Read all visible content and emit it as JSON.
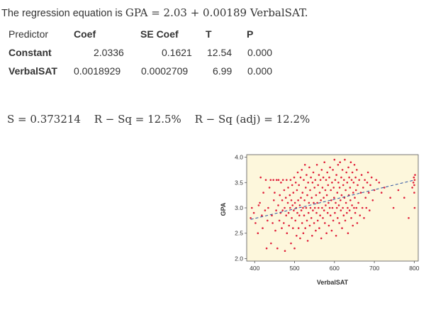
{
  "equation": {
    "label": "The regression equation is",
    "formula": "GPA = 2.03 + 0.00189 VerbalSAT."
  },
  "table": {
    "headers": [
      "Predictor",
      "Coef",
      "SE Coef",
      "T",
      "P"
    ],
    "rows": [
      [
        "Constant",
        "2.0336",
        "0.1621",
        "12.54",
        "0.000"
      ],
      [
        "VerbalSAT",
        "0.0018929",
        "0.0002709",
        "6.99",
        "0.000"
      ]
    ]
  },
  "stats": {
    "s": "S = 0.373214",
    "rsq": "R − Sq = 12.5%",
    "rsq_adj": "R − Sq (adj) = 12.2%"
  },
  "colors": {
    "plot_bg": "#fdf7dc",
    "points": "#e0203a",
    "fit_line": "#2a4f9e"
  },
  "chart_data": {
    "type": "scatter",
    "title": "",
    "xlabel": "VerbalSAT",
    "ylabel": "GPA",
    "xlim": [
      380,
      810
    ],
    "ylim": [
      1.95,
      4.05
    ],
    "xticks": [
      "400",
      "500",
      "600",
      "700",
      "800"
    ],
    "yticks": [
      "2.0",
      "2.5",
      "3.0",
      "3.5",
      "4.0"
    ],
    "fit_line": {
      "intercept": 2.0336,
      "slope": 0.0018929,
      "x_from": 390,
      "x_to": 800,
      "style": "dashed"
    },
    "points": [
      [
        390,
        2.8
      ],
      [
        393,
        3.0
      ],
      [
        398,
        2.9
      ],
      [
        402,
        2.7
      ],
      [
        408,
        2.5
      ],
      [
        410,
        3.05
      ],
      [
        413,
        3.1
      ],
      [
        415,
        3.6
      ],
      [
        418,
        2.85
      ],
      [
        420,
        2.6
      ],
      [
        422,
        3.3
      ],
      [
        426,
        2.95
      ],
      [
        428,
        3.55
      ],
      [
        430,
        2.2
      ],
      [
        432,
        2.75
      ],
      [
        434,
        3.0
      ],
      [
        437,
        3.4
      ],
      [
        440,
        3.55
      ],
      [
        441,
        2.3
      ],
      [
        443,
        2.85
      ],
      [
        445,
        2.7
      ],
      [
        447,
        3.55
      ],
      [
        448,
        3.15
      ],
      [
        450,
        3.3
      ],
      [
        452,
        2.55
      ],
      [
        454,
        2.95
      ],
      [
        455,
        3.55
      ],
      [
        457,
        2.2
      ],
      [
        459,
        3.05
      ],
      [
        460,
        3.55
      ],
      [
        462,
        2.75
      ],
      [
        463,
        3.25
      ],
      [
        465,
        2.9
      ],
      [
        466,
        3.5
      ],
      [
        468,
        2.6
      ],
      [
        469,
        3.15
      ],
      [
        470,
        2.95
      ],
      [
        471,
        3.55
      ],
      [
        473,
        2.7
      ],
      [
        474,
        3.35
      ],
      [
        475,
        3.0
      ],
      [
        476,
        2.15
      ],
      [
        478,
        3.2
      ],
      [
        479,
        2.85
      ],
      [
        480,
        3.55
      ],
      [
        481,
        2.5
      ],
      [
        483,
        3.1
      ],
      [
        484,
        3.4
      ],
      [
        485,
        2.9
      ],
      [
        486,
        2.65
      ],
      [
        488,
        3.25
      ],
      [
        489,
        3.0
      ],
      [
        490,
        3.55
      ],
      [
        491,
        2.3
      ],
      [
        492,
        3.15
      ],
      [
        493,
        2.8
      ],
      [
        494,
        3.45
      ],
      [
        495,
        3.05
      ],
      [
        496,
        2.6
      ],
      [
        497,
        3.3
      ],
      [
        498,
        2.95
      ],
      [
        499,
        3.6
      ],
      [
        500,
        2.2
      ],
      [
        501,
        3.1
      ],
      [
        502,
        2.75
      ],
      [
        503,
        3.5
      ],
      [
        504,
        3.0
      ],
      [
        505,
        2.45
      ],
      [
        506,
        3.35
      ],
      [
        507,
        2.9
      ],
      [
        508,
        3.7
      ],
      [
        509,
        3.15
      ],
      [
        510,
        2.6
      ],
      [
        511,
        3.45
      ],
      [
        512,
        2.85
      ],
      [
        513,
        3.05
      ],
      [
        514,
        2.4
      ],
      [
        515,
        3.6
      ],
      [
        516,
        3.2
      ],
      [
        517,
        2.95
      ],
      [
        518,
        3.75
      ],
      [
        519,
        2.7
      ],
      [
        520,
        3.3
      ],
      [
        521,
        3.0
      ],
      [
        522,
        2.5
      ],
      [
        523,
        3.55
      ],
      [
        524,
        2.85
      ],
      [
        525,
        3.15
      ],
      [
        526,
        3.85
      ],
      [
        527,
        2.6
      ],
      [
        528,
        3.4
      ],
      [
        529,
        3.0
      ],
      [
        530,
        3.65
      ],
      [
        531,
        2.75
      ],
      [
        532,
        3.25
      ],
      [
        533,
        2.35
      ],
      [
        534,
        3.5
      ],
      [
        535,
        2.9
      ],
      [
        536,
        3.1
      ],
      [
        537,
        3.8
      ],
      [
        538,
        2.65
      ],
      [
        539,
        3.35
      ],
      [
        540,
        3.0
      ],
      [
        541,
        3.6
      ],
      [
        542,
        2.8
      ],
      [
        543,
        3.2
      ],
      [
        544,
        2.45
      ],
      [
        545,
        3.5
      ],
      [
        546,
        2.95
      ],
      [
        547,
        3.7
      ],
      [
        548,
        3.1
      ],
      [
        549,
        2.7
      ],
      [
        550,
        3.4
      ],
      [
        551,
        3.0
      ],
      [
        552,
        3.55
      ],
      [
        553,
        2.55
      ],
      [
        554,
        3.25
      ],
      [
        555,
        2.9
      ],
      [
        556,
        3.85
      ],
      [
        557,
        3.1
      ],
      [
        558,
        2.75
      ],
      [
        559,
        3.45
      ],
      [
        560,
        3.0
      ],
      [
        561,
        3.65
      ],
      [
        562,
        2.6
      ],
      [
        563,
        3.3
      ],
      [
        564,
        2.85
      ],
      [
        565,
        3.55
      ],
      [
        566,
        3.15
      ],
      [
        567,
        2.4
      ],
      [
        568,
        3.75
      ],
      [
        569,
        3.0
      ],
      [
        570,
        3.4
      ],
      [
        571,
        2.8
      ],
      [
        572,
        3.6
      ],
      [
        573,
        3.2
      ],
      [
        574,
        2.95
      ],
      [
        575,
        3.9
      ],
      [
        576,
        2.7
      ],
      [
        577,
        3.35
      ],
      [
        578,
        3.05
      ],
      [
        579,
        3.55
      ],
      [
        580,
        2.5
      ],
      [
        581,
        3.25
      ],
      [
        582,
        3.7
      ],
      [
        583,
        2.9
      ],
      [
        584,
        3.45
      ],
      [
        585,
        3.1
      ],
      [
        586,
        2.65
      ],
      [
        587,
        3.6
      ],
      [
        588,
        3.0
      ],
      [
        589,
        3.8
      ],
      [
        590,
        2.85
      ],
      [
        591,
        3.35
      ],
      [
        592,
        3.15
      ],
      [
        593,
        2.55
      ],
      [
        594,
        3.5
      ],
      [
        595,
        3.0
      ],
      [
        596,
        3.75
      ],
      [
        597,
        2.75
      ],
      [
        598,
        3.4
      ],
      [
        599,
        3.2
      ],
      [
        600,
        3.95
      ],
      [
        601,
        2.9
      ],
      [
        602,
        3.55
      ],
      [
        603,
        3.1
      ],
      [
        604,
        2.45
      ],
      [
        605,
        3.65
      ],
      [
        606,
        3.0
      ],
      [
        607,
        3.3
      ],
      [
        608,
        2.8
      ],
      [
        609,
        3.85
      ],
      [
        610,
        3.5
      ],
      [
        611,
        3.05
      ],
      [
        612,
        2.7
      ],
      [
        613,
        3.4
      ],
      [
        614,
        3.9
      ],
      [
        615,
        3.15
      ],
      [
        616,
        2.95
      ],
      [
        617,
        3.6
      ],
      [
        618,
        3.25
      ],
      [
        619,
        2.6
      ],
      [
        620,
        3.75
      ],
      [
        621,
        3.0
      ],
      [
        622,
        3.45
      ],
      [
        623,
        2.85
      ],
      [
        624,
        3.55
      ],
      [
        625,
        3.2
      ],
      [
        626,
        3.95
      ],
      [
        627,
        2.75
      ],
      [
        628,
        3.35
      ],
      [
        629,
        3.1
      ],
      [
        630,
        3.7
      ],
      [
        631,
        2.9
      ],
      [
        632,
        3.5
      ],
      [
        633,
        3.0
      ],
      [
        634,
        2.5
      ],
      [
        635,
        3.8
      ],
      [
        636,
        3.25
      ],
      [
        637,
        3.6
      ],
      [
        638,
        2.95
      ],
      [
        639,
        3.4
      ],
      [
        640,
        3.15
      ],
      [
        641,
        3.9
      ],
      [
        642,
        2.8
      ],
      [
        643,
        3.55
      ],
      [
        644,
        3.05
      ],
      [
        645,
        3.7
      ],
      [
        646,
        2.65
      ],
      [
        647,
        3.3
      ],
      [
        648,
        3.5
      ],
      [
        649,
        3.0
      ],
      [
        650,
        3.85
      ],
      [
        651,
        3.2
      ],
      [
        652,
        2.9
      ],
      [
        653,
        3.6
      ],
      [
        654,
        3.35
      ],
      [
        655,
        3.0
      ],
      [
        656,
        3.75
      ],
      [
        657,
        2.7
      ],
      [
        658,
        3.45
      ],
      [
        660,
        3.1
      ],
      [
        662,
        3.55
      ],
      [
        664,
        2.85
      ],
      [
        666,
        3.3
      ],
      [
        668,
        3.65
      ],
      [
        670,
        3.0
      ],
      [
        672,
        3.4
      ],
      [
        674,
        2.8
      ],
      [
        676,
        3.55
      ],
      [
        678,
        3.2
      ],
      [
        680,
        3.0
      ],
      [
        682,
        3.5
      ],
      [
        684,
        3.7
      ],
      [
        686,
        3.3
      ],
      [
        688,
        2.95
      ],
      [
        690,
        3.45
      ],
      [
        693,
        3.6
      ],
      [
        696,
        3.15
      ],
      [
        700,
        3.35
      ],
      [
        705,
        3.55
      ],
      [
        712,
        3.5
      ],
      [
        718,
        3.3
      ],
      [
        725,
        3.4
      ],
      [
        740,
        3.2
      ],
      [
        748,
        3.0
      ],
      [
        760,
        3.35
      ],
      [
        775,
        3.2
      ],
      [
        786,
        2.8
      ],
      [
        795,
        3.4
      ],
      [
        798,
        3.5
      ],
      [
        799,
        3.6
      ],
      [
        800,
        3.3
      ],
      [
        800,
        3.45
      ],
      [
        801,
        3.55
      ],
      [
        801,
        3.0
      ],
      [
        802,
        3.65
      ]
    ]
  }
}
